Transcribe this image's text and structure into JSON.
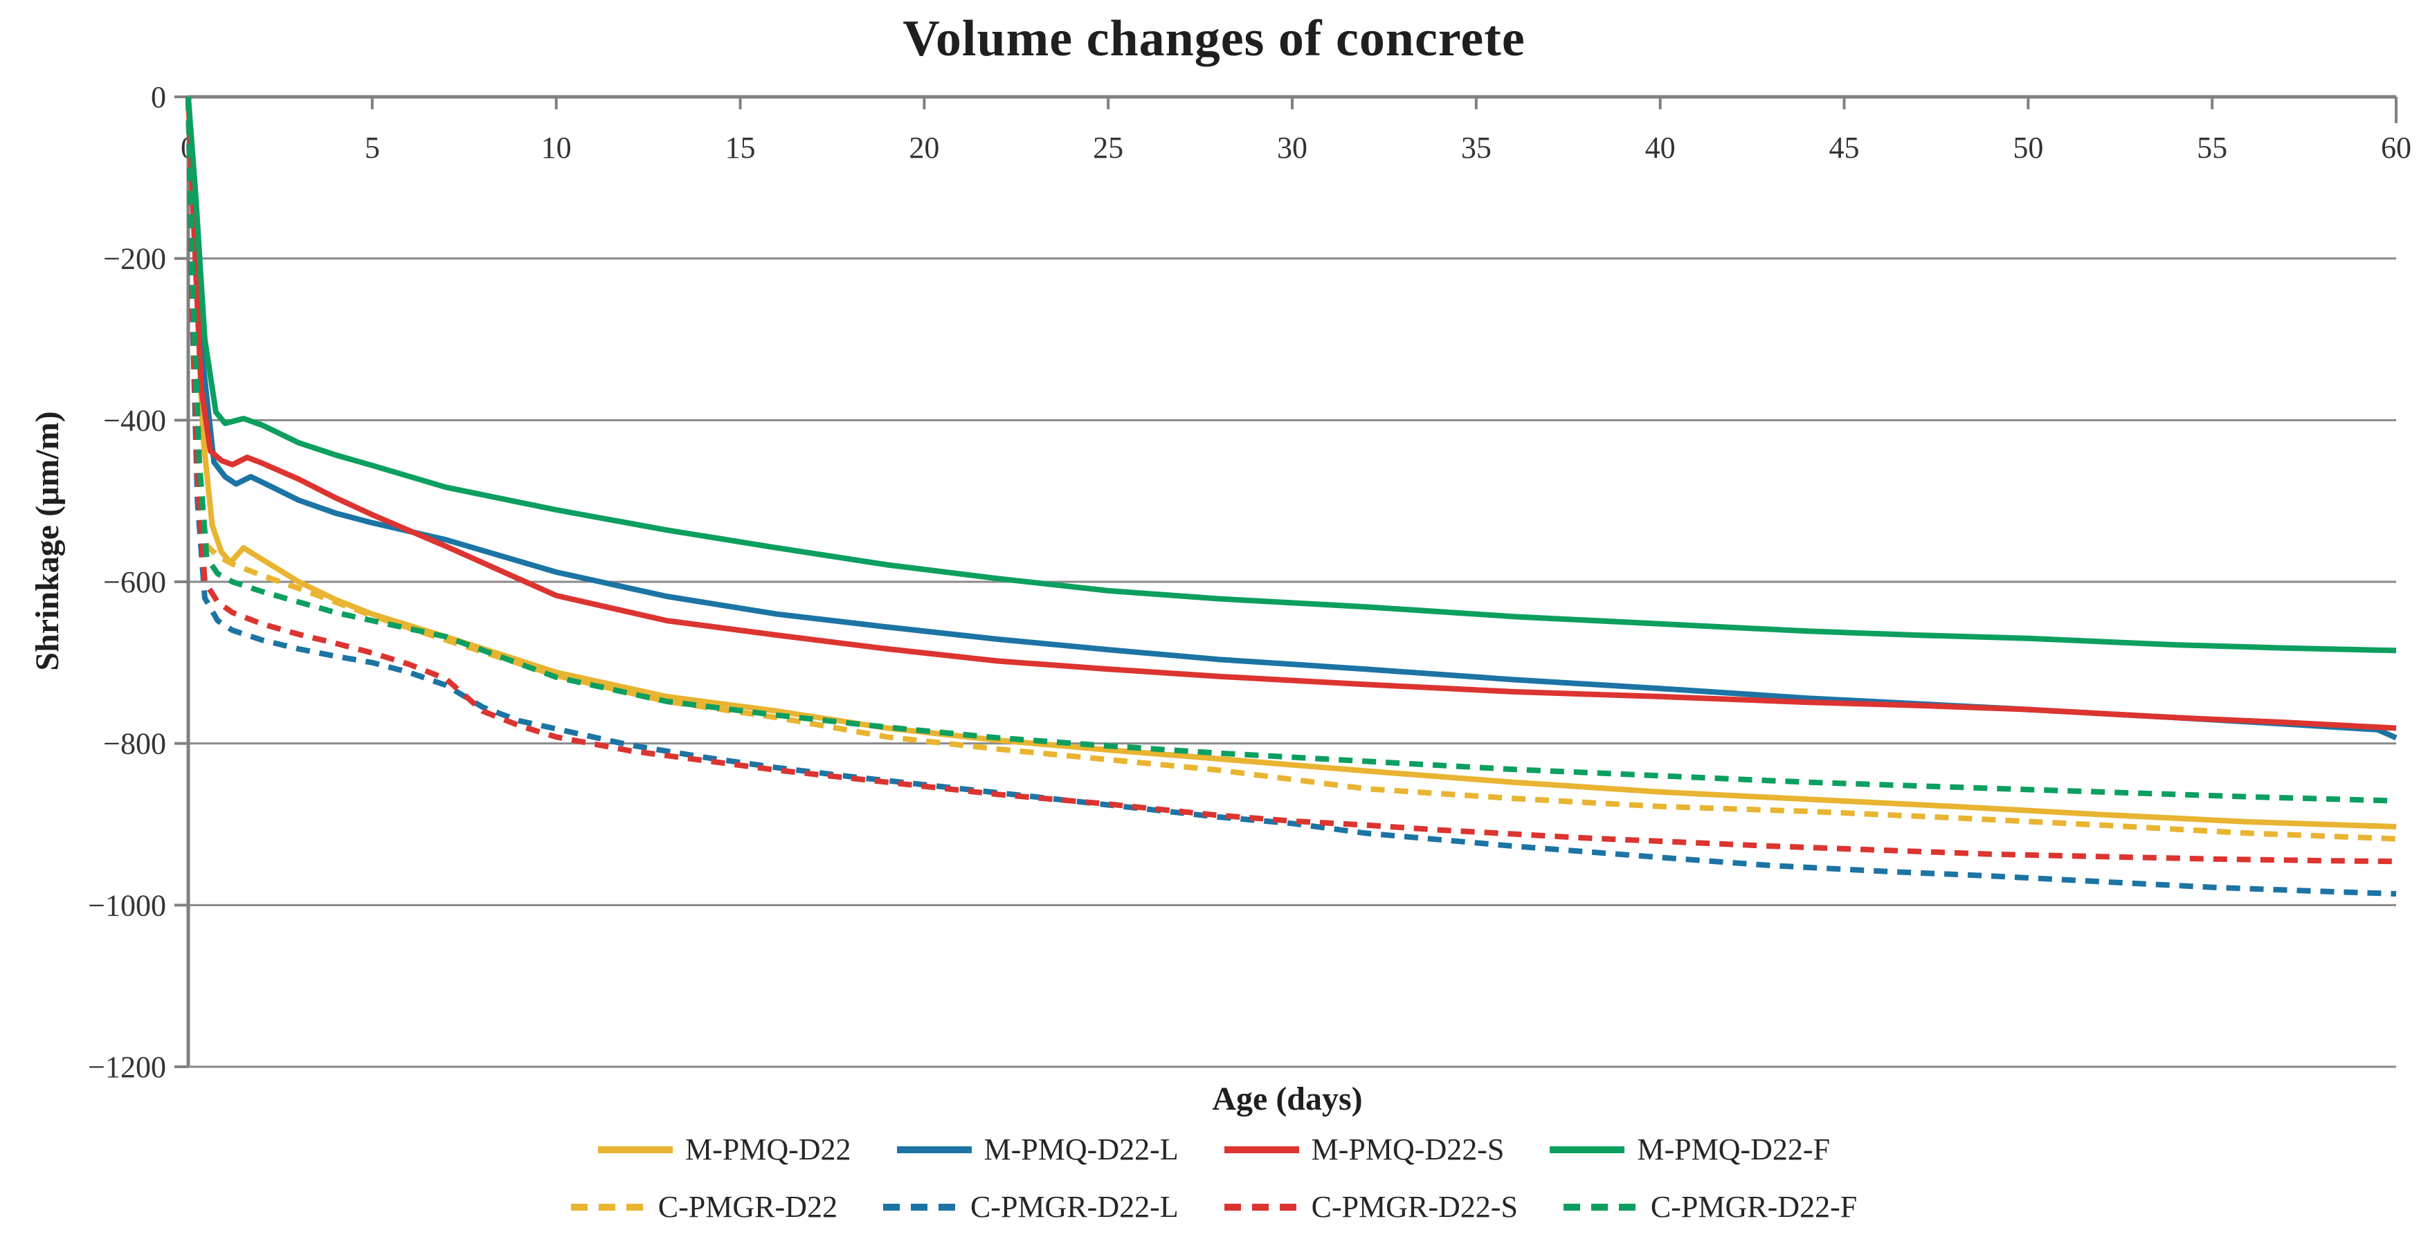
{
  "chart_data": {
    "type": "line",
    "title": "Volume changes of concrete",
    "xlabel": "Age (days)",
    "ylabel": "Shrinkage (μm/m)",
    "xlim": [
      0,
      60
    ],
    "ylim": [
      -1200,
      0
    ],
    "x_ticks": [
      0,
      5,
      10,
      15,
      20,
      25,
      30,
      35,
      40,
      45,
      50,
      55,
      60
    ],
    "y_ticks": [
      0,
      -200,
      -400,
      -600,
      -800,
      -1000,
      -1200
    ],
    "y_tick_labels": [
      "0",
      "−200",
      "−400",
      "−600",
      "−800",
      "−1000",
      "−1200"
    ],
    "grid": "horizontal",
    "grid_color": "#8a8a8a",
    "axis_color": "#808080",
    "legend_position": "bottom",
    "legend_rows": [
      [
        "M-PMQ-D22",
        "M-PMQ-D22-L",
        "M-PMQ-D22-S",
        "M-PMQ-D22-F"
      ],
      [
        "C-PMGR-D22",
        "C-PMGR-D22-L",
        "C-PMGR-D22-S",
        "C-PMGR-D22-F"
      ]
    ],
    "series": [
      {
        "name": "M-PMQ-D22",
        "color": "#E8B431",
        "style": "solid",
        "points": [
          [
            0,
            0
          ],
          [
            0.15,
            -150
          ],
          [
            0.4,
            -420
          ],
          [
            0.65,
            -530
          ],
          [
            0.9,
            -563
          ],
          [
            1.15,
            -576
          ],
          [
            1.5,
            -558
          ],
          [
            2,
            -572
          ],
          [
            3,
            -600
          ],
          [
            4,
            -622
          ],
          [
            5,
            -640
          ],
          [
            7,
            -668
          ],
          [
            10,
            -712
          ],
          [
            13,
            -742
          ],
          [
            16,
            -760
          ],
          [
            19,
            -781
          ],
          [
            22,
            -796
          ],
          [
            25,
            -808
          ],
          [
            28,
            -819
          ],
          [
            32,
            -834
          ],
          [
            36,
            -848
          ],
          [
            40,
            -860
          ],
          [
            44,
            -869
          ],
          [
            48,
            -878
          ],
          [
            52,
            -888
          ],
          [
            56,
            -897
          ],
          [
            60,
            -903
          ]
        ]
      },
      {
        "name": "M-PMQ-D22-L",
        "color": "#1C74A4",
        "style": "solid",
        "points": [
          [
            0,
            0
          ],
          [
            0.15,
            -120
          ],
          [
            0.4,
            -330
          ],
          [
            0.7,
            -452
          ],
          [
            1,
            -470
          ],
          [
            1.3,
            -479
          ],
          [
            1.7,
            -470
          ],
          [
            2.2,
            -481
          ],
          [
            3,
            -499
          ],
          [
            4,
            -515
          ],
          [
            5,
            -527
          ],
          [
            7,
            -548
          ],
          [
            10,
            -588
          ],
          [
            13,
            -618
          ],
          [
            16,
            -640
          ],
          [
            19,
            -656
          ],
          [
            22,
            -671
          ],
          [
            25,
            -684
          ],
          [
            28,
            -696
          ],
          [
            32,
            -708
          ],
          [
            36,
            -721
          ],
          [
            40,
            -732
          ],
          [
            44,
            -744
          ],
          [
            47,
            -751
          ],
          [
            50,
            -758
          ],
          [
            54,
            -768
          ],
          [
            57,
            -776
          ],
          [
            59.5,
            -783
          ],
          [
            60,
            -793
          ]
        ]
      },
      {
        "name": "M-PMQ-D22-S",
        "color": "#DC3430",
        "style": "solid",
        "points": [
          [
            0,
            0
          ],
          [
            0.15,
            -160
          ],
          [
            0.35,
            -360
          ],
          [
            0.6,
            -438
          ],
          [
            0.9,
            -450
          ],
          [
            1.2,
            -455
          ],
          [
            1.6,
            -446
          ],
          [
            2,
            -453
          ],
          [
            3,
            -473
          ],
          [
            4,
            -496
          ],
          [
            5,
            -517
          ],
          [
            7,
            -556
          ],
          [
            10,
            -617
          ],
          [
            13,
            -648
          ],
          [
            16,
            -666
          ],
          [
            19,
            -683
          ],
          [
            22,
            -698
          ],
          [
            25,
            -708
          ],
          [
            28,
            -717
          ],
          [
            32,
            -727
          ],
          [
            36,
            -736
          ],
          [
            40,
            -742
          ],
          [
            44,
            -749
          ],
          [
            47,
            -753
          ],
          [
            50,
            -758
          ],
          [
            54,
            -768
          ],
          [
            57,
            -774
          ],
          [
            60,
            -781
          ]
        ]
      },
      {
        "name": "M-PMQ-D22-F",
        "color": "#0C9F5F",
        "style": "solid",
        "points": [
          [
            0,
            0
          ],
          [
            0.2,
            -120
          ],
          [
            0.45,
            -300
          ],
          [
            0.75,
            -390
          ],
          [
            1,
            -404
          ],
          [
            1.5,
            -398
          ],
          [
            2,
            -406
          ],
          [
            3,
            -428
          ],
          [
            4,
            -443
          ],
          [
            5,
            -456
          ],
          [
            7,
            -483
          ],
          [
            10,
            -511
          ],
          [
            13,
            -536
          ],
          [
            16,
            -558
          ],
          [
            19,
            -579
          ],
          [
            22,
            -596
          ],
          [
            25,
            -611
          ],
          [
            28,
            -621
          ],
          [
            32,
            -631
          ],
          [
            36,
            -643
          ],
          [
            40,
            -652
          ],
          [
            44,
            -661
          ],
          [
            47,
            -666
          ],
          [
            50,
            -670
          ],
          [
            54,
            -678
          ],
          [
            57,
            -682
          ],
          [
            60,
            -685
          ]
        ]
      },
      {
        "name": "C-PMGR-D22",
        "color": "#E8B431",
        "style": "dashed",
        "points": [
          [
            0,
            0
          ],
          [
            0.1,
            -220
          ],
          [
            0.3,
            -480
          ],
          [
            0.5,
            -555
          ],
          [
            0.8,
            -568
          ],
          [
            1.2,
            -578
          ],
          [
            2,
            -592
          ],
          [
            3,
            -608
          ],
          [
            4,
            -625
          ],
          [
            5,
            -642
          ],
          [
            7,
            -672
          ],
          [
            10,
            -716
          ],
          [
            13,
            -748
          ],
          [
            16,
            -768
          ],
          [
            19,
            -792
          ],
          [
            22,
            -807
          ],
          [
            25,
            -820
          ],
          [
            28,
            -833
          ],
          [
            32,
            -856
          ],
          [
            36,
            -868
          ],
          [
            40,
            -878
          ],
          [
            44,
            -884
          ],
          [
            48,
            -892
          ],
          [
            52,
            -901
          ],
          [
            56,
            -911
          ],
          [
            60,
            -918
          ]
        ]
      },
      {
        "name": "C-PMGR-D22-L",
        "color": "#1C74A4",
        "style": "dashed",
        "points": [
          [
            0,
            0
          ],
          [
            0.1,
            -250
          ],
          [
            0.25,
            -500
          ],
          [
            0.45,
            -620
          ],
          [
            0.8,
            -648
          ],
          [
            1.2,
            -660
          ],
          [
            2,
            -672
          ],
          [
            3,
            -683
          ],
          [
            4,
            -692
          ],
          [
            5,
            -700
          ],
          [
            6,
            -712
          ],
          [
            7,
            -728
          ],
          [
            8,
            -755
          ],
          [
            9,
            -772
          ],
          [
            10,
            -782
          ],
          [
            12,
            -802
          ],
          [
            14,
            -817
          ],
          [
            16,
            -830
          ],
          [
            18,
            -841
          ],
          [
            20,
            -851
          ],
          [
            22,
            -861
          ],
          [
            25,
            -876
          ],
          [
            28,
            -891
          ],
          [
            30,
            -899
          ],
          [
            32,
            -911
          ],
          [
            34,
            -919
          ],
          [
            36,
            -927
          ],
          [
            38,
            -934
          ],
          [
            40,
            -941
          ],
          [
            43,
            -951
          ],
          [
            46,
            -958
          ],
          [
            49,
            -964
          ],
          [
            52,
            -971
          ],
          [
            55,
            -978
          ],
          [
            58,
            -983
          ],
          [
            60,
            -986
          ]
        ]
      },
      {
        "name": "C-PMGR-D22-S",
        "color": "#DC3430",
        "style": "dashed",
        "points": [
          [
            0,
            0
          ],
          [
            0.1,
            -230
          ],
          [
            0.25,
            -470
          ],
          [
            0.45,
            -600
          ],
          [
            0.8,
            -625
          ],
          [
            1.2,
            -638
          ],
          [
            2,
            -652
          ],
          [
            3,
            -665
          ],
          [
            4,
            -676
          ],
          [
            5,
            -688
          ],
          [
            6,
            -702
          ],
          [
            7,
            -720
          ],
          [
            8,
            -760
          ],
          [
            9,
            -778
          ],
          [
            10,
            -792
          ],
          [
            12,
            -809
          ],
          [
            14,
            -821
          ],
          [
            16,
            -833
          ],
          [
            18,
            -843
          ],
          [
            20,
            -853
          ],
          [
            22,
            -863
          ],
          [
            25,
            -875
          ],
          [
            28,
            -889
          ],
          [
            30,
            -896
          ],
          [
            32,
            -901
          ],
          [
            34,
            -907
          ],
          [
            36,
            -912
          ],
          [
            38,
            -917
          ],
          [
            40,
            -921
          ],
          [
            43,
            -927
          ],
          [
            46,
            -932
          ],
          [
            49,
            -937
          ],
          [
            52,
            -940
          ],
          [
            55,
            -943
          ],
          [
            58,
            -945
          ],
          [
            60,
            -946
          ]
        ]
      },
      {
        "name": "C-PMGR-D22-F",
        "color": "#0C9F5F",
        "style": "dashed",
        "points": [
          [
            0,
            0
          ],
          [
            0.1,
            -200
          ],
          [
            0.3,
            -450
          ],
          [
            0.5,
            -570
          ],
          [
            0.8,
            -590
          ],
          [
            1.2,
            -600
          ],
          [
            2,
            -612
          ],
          [
            3,
            -625
          ],
          [
            4,
            -638
          ],
          [
            5,
            -648
          ],
          [
            7,
            -668
          ],
          [
            10,
            -718
          ],
          [
            13,
            -748
          ],
          [
            16,
            -765
          ],
          [
            19,
            -780
          ],
          [
            22,
            -793
          ],
          [
            25,
            -803
          ],
          [
            28,
            -812
          ],
          [
            32,
            -822
          ],
          [
            36,
            -832
          ],
          [
            40,
            -840
          ],
          [
            44,
            -848
          ],
          [
            48,
            -854
          ],
          [
            52,
            -860
          ],
          [
            56,
            -866
          ],
          [
            60,
            -871
          ]
        ]
      }
    ]
  }
}
